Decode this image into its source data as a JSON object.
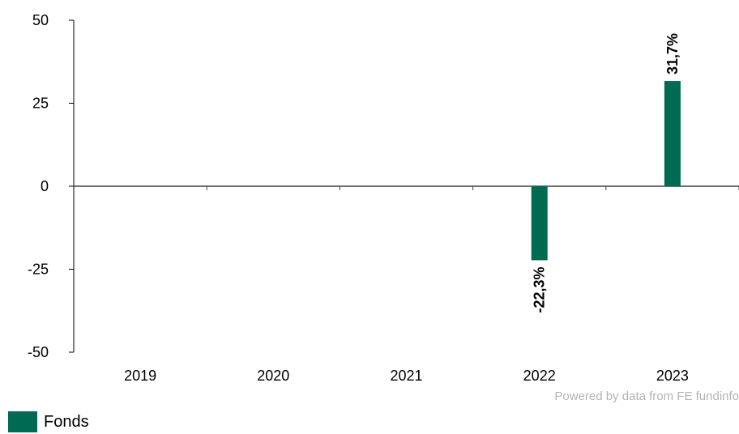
{
  "chart_data": {
    "type": "bar",
    "categories": [
      "2019",
      "2020",
      "2021",
      "2022",
      "2023"
    ],
    "series": [
      {
        "name": "Fonds",
        "values": [
          null,
          null,
          null,
          -22.3,
          31.7
        ],
        "color": "#006b52"
      }
    ],
    "data_labels": [
      "",
      "",
      "",
      "-22,3%",
      "31,7%"
    ],
    "ylim": [
      -50,
      50
    ],
    "yticks": [
      50,
      25,
      0,
      -25,
      -50
    ],
    "title": "",
    "xlabel": "",
    "ylabel": "",
    "grid": false,
    "legend_position": "bottom-left"
  },
  "credit": "Powered by data from FE fundinfo",
  "legend": {
    "label": "Fonds",
    "color": "#006b52"
  }
}
